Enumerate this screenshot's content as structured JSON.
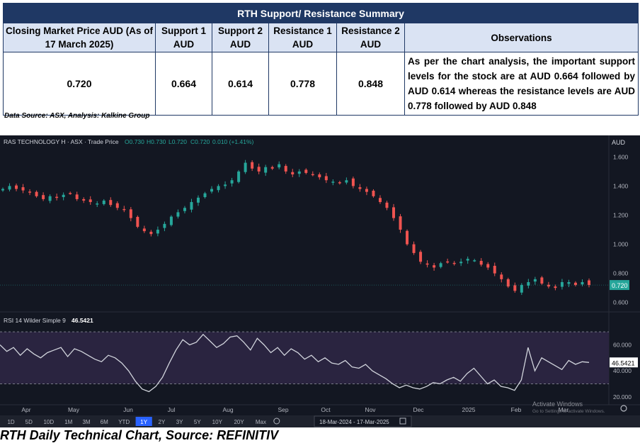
{
  "summary": {
    "title": "RTH Support/  Resistance Summary",
    "headers": {
      "closing": "Closing Market Price AUD (As of 17 March 2025)",
      "support1": "Support 1 AUD",
      "support2": "Support 2 AUD",
      "resistance1": "Resistance 1 AUD",
      "resistance2": "Resistance 2 AUD",
      "observations": "Observations"
    },
    "values": {
      "closing": "0.720",
      "support1": "0.664",
      "support2": "0.614",
      "resistance1": "0.778",
      "resistance2": "0.848"
    },
    "observation_text": "As per the chart analysis, the important support levels for the stock are at AUD 0.664 followed by AUD 0.614 whereas the resistance levels are AUD 0.778 followed by AUD 0.848"
  },
  "data_source": "Data Source: ASX, Analysis: Kalkine Group",
  "chart": {
    "legend": "RAS TECHNOLOGY H · ASX · Trade Price",
    "ohlc": {
      "o": "O0.730",
      "h": "H0.730",
      "l": "L0.720",
      "c": "C0.720",
      "chg": "0.010 (+1.41%)"
    },
    "currency": "AUD",
    "last_price": "0.720",
    "rsi_legend": "RSI 14 Wilder Simple 9",
    "rsi_value": "46.5421",
    "timeframes": [
      "1D",
      "5D",
      "10D",
      "1M",
      "3M",
      "6M",
      "YTD",
      "1Y",
      "2Y",
      "3Y",
      "5Y",
      "10Y",
      "20Y",
      "Max"
    ],
    "active_timeframe": "1Y",
    "date_range": "18-Mar-2024  -  17-Mar-2025",
    "watermark": [
      "Activate Windows",
      "Go to Settings to activate Windows."
    ],
    "colors": {
      "up": "#26a69a",
      "down": "#ef5350",
      "bg": "#131722",
      "rsi_line": "#d1d4dc"
    }
  },
  "chart_data": [
    {
      "type": "line",
      "title": "RAS TECHNOLOGY H · ASX · Trade Price",
      "x_ticks": [
        "Apr",
        "May",
        "Jun",
        "Jul",
        "Aug",
        "Sep",
        "Oct",
        "Nov",
        "Dec",
        "2025",
        "Feb",
        "Mar"
      ],
      "y_ticks": [
        "1.600",
        "1.400",
        "1.200",
        "1.000",
        "0.800",
        "0.600"
      ],
      "ylim": [
        0.55,
        1.67
      ],
      "series": [
        {
          "values": [
            1.38,
            1.4,
            1.38,
            1.37,
            1.36,
            1.33,
            1.31,
            1.33,
            1.32,
            1.34,
            1.35,
            1.31,
            1.3,
            1.29,
            1.28,
            1.3,
            1.27,
            1.25,
            1.24,
            1.18,
            1.12,
            1.09,
            1.07,
            1.1,
            1.14,
            1.19,
            1.22,
            1.25,
            1.29,
            1.32,
            1.35,
            1.38,
            1.4,
            1.41,
            1.44,
            1.5,
            1.56,
            1.52,
            1.5,
            1.53,
            1.52,
            1.55,
            1.5,
            1.48,
            1.5,
            1.49,
            1.48,
            1.46,
            1.44,
            1.43,
            1.42,
            1.44,
            1.4,
            1.38,
            1.36,
            1.33,
            1.29,
            1.25,
            1.18,
            1.1,
            1.0,
            0.94,
            0.88,
            0.86,
            0.84,
            0.87,
            0.88,
            0.87,
            0.88,
            0.9,
            0.89,
            0.86,
            0.84,
            0.8,
            0.76,
            0.71,
            0.68,
            0.72,
            0.74,
            0.76,
            0.73,
            0.71,
            0.7,
            0.74,
            0.74,
            0.72,
            0.74,
            0.72
          ]
        }
      ]
    },
    {
      "type": "line",
      "title": "RSI 14 Wilder Simple 9",
      "y_ticks": [
        "60.000",
        "40.000",
        "20.000"
      ],
      "ylim": [
        15,
        75
      ],
      "series": [
        {
          "values": [
            60,
            55,
            58,
            52,
            57,
            53,
            50,
            54,
            56,
            58,
            51,
            57,
            55,
            52,
            49,
            47,
            52,
            50,
            46,
            40,
            32,
            26,
            24,
            28,
            35,
            46,
            56,
            64,
            60,
            62,
            68,
            63,
            58,
            61,
            66,
            67,
            62,
            56,
            65,
            60,
            54,
            58,
            52,
            57,
            54,
            49,
            52,
            47,
            50,
            46,
            45,
            48,
            43,
            42,
            45,
            40,
            37,
            34,
            30,
            27,
            29,
            27,
            26,
            28,
            31,
            30,
            33,
            35,
            32,
            38,
            42,
            36,
            30,
            33,
            28,
            27,
            25,
            33,
            58,
            40,
            50,
            47,
            44,
            41,
            48,
            45,
            47,
            46.5
          ]
        }
      ]
    }
  ]
}
